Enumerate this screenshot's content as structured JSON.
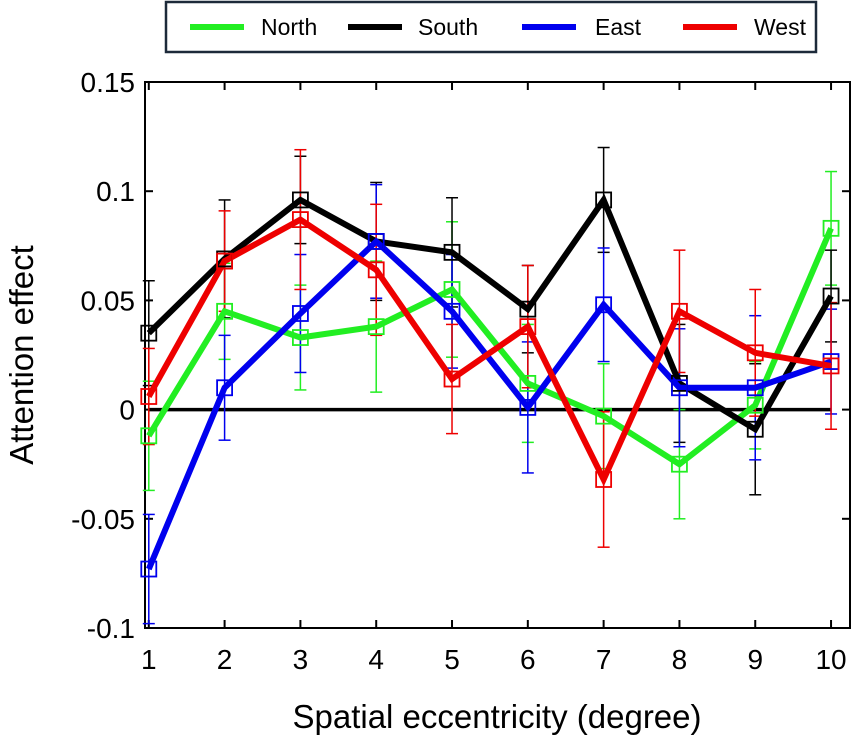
{
  "chart_data": {
    "type": "line",
    "title": "",
    "xlabel": "Spatial eccentricity (degree)",
    "ylabel": "Attention effect",
    "x": [
      1,
      2,
      3,
      4,
      5,
      6,
      7,
      8,
      9,
      10
    ],
    "xlim": [
      0.95,
      10.25
    ],
    "ylim": [
      -0.1,
      0.15
    ],
    "xticks": [
      1,
      2,
      3,
      4,
      5,
      6,
      7,
      8,
      9,
      10
    ],
    "yticks": [
      -0.1,
      -0.05,
      0,
      0.05,
      0.1,
      0.15
    ],
    "ytick_labels": [
      "-0.1",
      "-0.05",
      "0",
      "0.05",
      "0.1",
      "0.15"
    ],
    "reference_line": 0,
    "legend_position": "top-outside",
    "series": [
      {
        "name": "North",
        "color": "#22ee22",
        "values": [
          -0.012,
          0.045,
          0.033,
          0.038,
          0.055,
          0.012,
          -0.003,
          -0.025,
          0.002,
          0.083
        ],
        "errors": [
          0.025,
          0.022,
          0.024,
          0.03,
          0.031,
          0.027,
          0.024,
          0.025,
          0.02,
          0.026
        ]
      },
      {
        "name": "South",
        "color": "#000000",
        "values": [
          0.035,
          0.069,
          0.096,
          0.077,
          0.072,
          0.046,
          0.096,
          0.012,
          -0.009,
          0.052
        ],
        "errors": [
          0.024,
          0.027,
          0.02,
          0.027,
          0.025,
          0.02,
          0.024,
          0.027,
          0.03,
          0.021
        ]
      },
      {
        "name": "East",
        "color": "#0000ee",
        "values": [
          -0.073,
          0.01,
          0.044,
          0.077,
          0.045,
          0.001,
          0.048,
          0.01,
          0.01,
          0.022
        ],
        "errors": [
          0.025,
          0.024,
          0.027,
          0.026,
          0.026,
          0.03,
          0.026,
          0.027,
          0.033,
          0.024
        ]
      },
      {
        "name": "West",
        "color": "#ee0000",
        "values": [
          0.006,
          0.068,
          0.087,
          0.064,
          0.014,
          0.038,
          -0.032,
          0.045,
          0.026,
          0.02
        ],
        "errors": [
          0.022,
          0.023,
          0.032,
          0.03,
          0.025,
          0.028,
          0.031,
          0.028,
          0.029,
          0.029
        ]
      }
    ]
  }
}
